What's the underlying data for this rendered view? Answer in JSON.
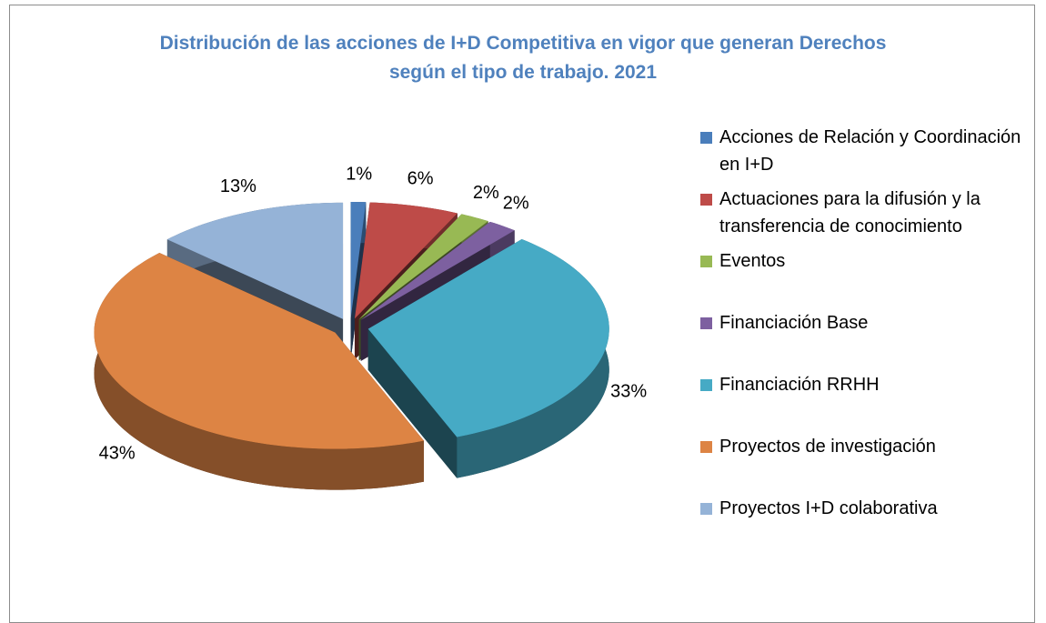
{
  "chart_data": {
    "type": "pie3d",
    "title": "Distribución de las acciones de I+D Competitiva en vigor que generan Derechos según el tipo de trabajo. 2021",
    "series": [
      {
        "name": "Acciones de Relación y Coordinación en I+D",
        "color": "#4a7ebb",
        "values": [
          1
        ],
        "value_labels": [
          "1%"
        ]
      },
      {
        "name": "Actuaciones para la difusión y la transferencia de conocimiento",
        "color": "#be4b48",
        "values": [
          6
        ],
        "value_labels": [
          "6%"
        ]
      },
      {
        "name": "Eventos",
        "color": "#98b954",
        "values": [
          2
        ],
        "value_labels": [
          "2%"
        ]
      },
      {
        "name": "Financiación Base",
        "color": "#7d60a0",
        "values": [
          2
        ],
        "value_labels": [
          "2%"
        ]
      },
      {
        "name": "Financiación RRHH",
        "color": "#46aac5",
        "values": [
          33
        ],
        "value_labels": [
          "33%"
        ]
      },
      {
        "name": "Proyectos de investigación",
        "color": "#dd8444",
        "values": [
          43
        ],
        "value_labels": [
          "43%"
        ]
      },
      {
        "name": "Proyectos I+D colaborativa",
        "color": "#95b3d7",
        "values": [
          13
        ],
        "value_labels": [
          "13%"
        ]
      }
    ],
    "legend": "right"
  }
}
